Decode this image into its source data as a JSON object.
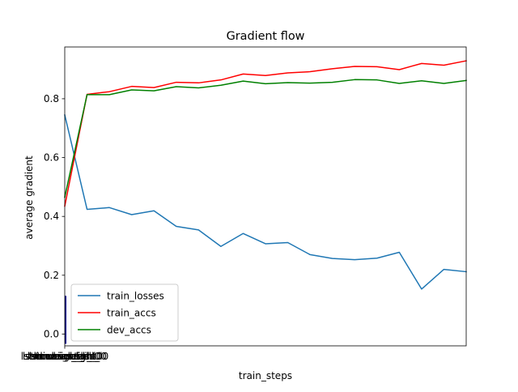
{
  "chart_data": {
    "type": "line",
    "title": "Gradient flow",
    "xlabel": "train_steps",
    "ylabel": "average gradient",
    "ylim": [
      -0.04,
      0.976
    ],
    "yticks": [
      0.0,
      0.2,
      0.4,
      0.6,
      0.8
    ],
    "ytick_labels": [
      "0.0",
      "0.2",
      "0.4",
      "0.6",
      "0.8"
    ],
    "x_tick_labels_overlapping": [
      "lstm.weight_ih_l0",
      "lstm.weight_hh_l0",
      "lstm.bias_ih_l0",
      "lstm.bias_hh_l0",
      "linear.weight",
      "linear.bias"
    ],
    "grid": false,
    "legend": "lower-left",
    "x": [
      0,
      1,
      2,
      3,
      4,
      5,
      6,
      7,
      8,
      9,
      10,
      11,
      12,
      13,
      14,
      15,
      16,
      17,
      18
    ],
    "series": [
      {
        "name": "train_losses",
        "color": "#1f77b4",
        "values": [
          0.745,
          0.424,
          0.43,
          0.406,
          0.419,
          0.366,
          0.354,
          0.298,
          0.342,
          0.307,
          0.311,
          0.27,
          0.257,
          0.253,
          0.258,
          0.278,
          0.153,
          0.22,
          0.212
        ]
      },
      {
        "name": "train_accs",
        "color": "#ff0000",
        "values": [
          0.435,
          0.815,
          0.824,
          0.842,
          0.838,
          0.856,
          0.854,
          0.864,
          0.884,
          0.879,
          0.888,
          0.892,
          0.902,
          0.91,
          0.909,
          0.899,
          0.92,
          0.914,
          0.929
        ]
      },
      {
        "name": "dev_accs",
        "color": "#008000",
        "values": [
          0.465,
          0.814,
          0.814,
          0.83,
          0.827,
          0.841,
          0.837,
          0.846,
          0.86,
          0.851,
          0.855,
          0.853,
          0.856,
          0.865,
          0.864,
          0.852,
          0.861,
          0.852,
          0.862
        ]
      }
    ],
    "gradient_bars": {
      "color": "#00008b",
      "values": [
        0.13,
        0.0,
        0.0,
        0.0,
        0.0,
        0.0
      ]
    }
  }
}
